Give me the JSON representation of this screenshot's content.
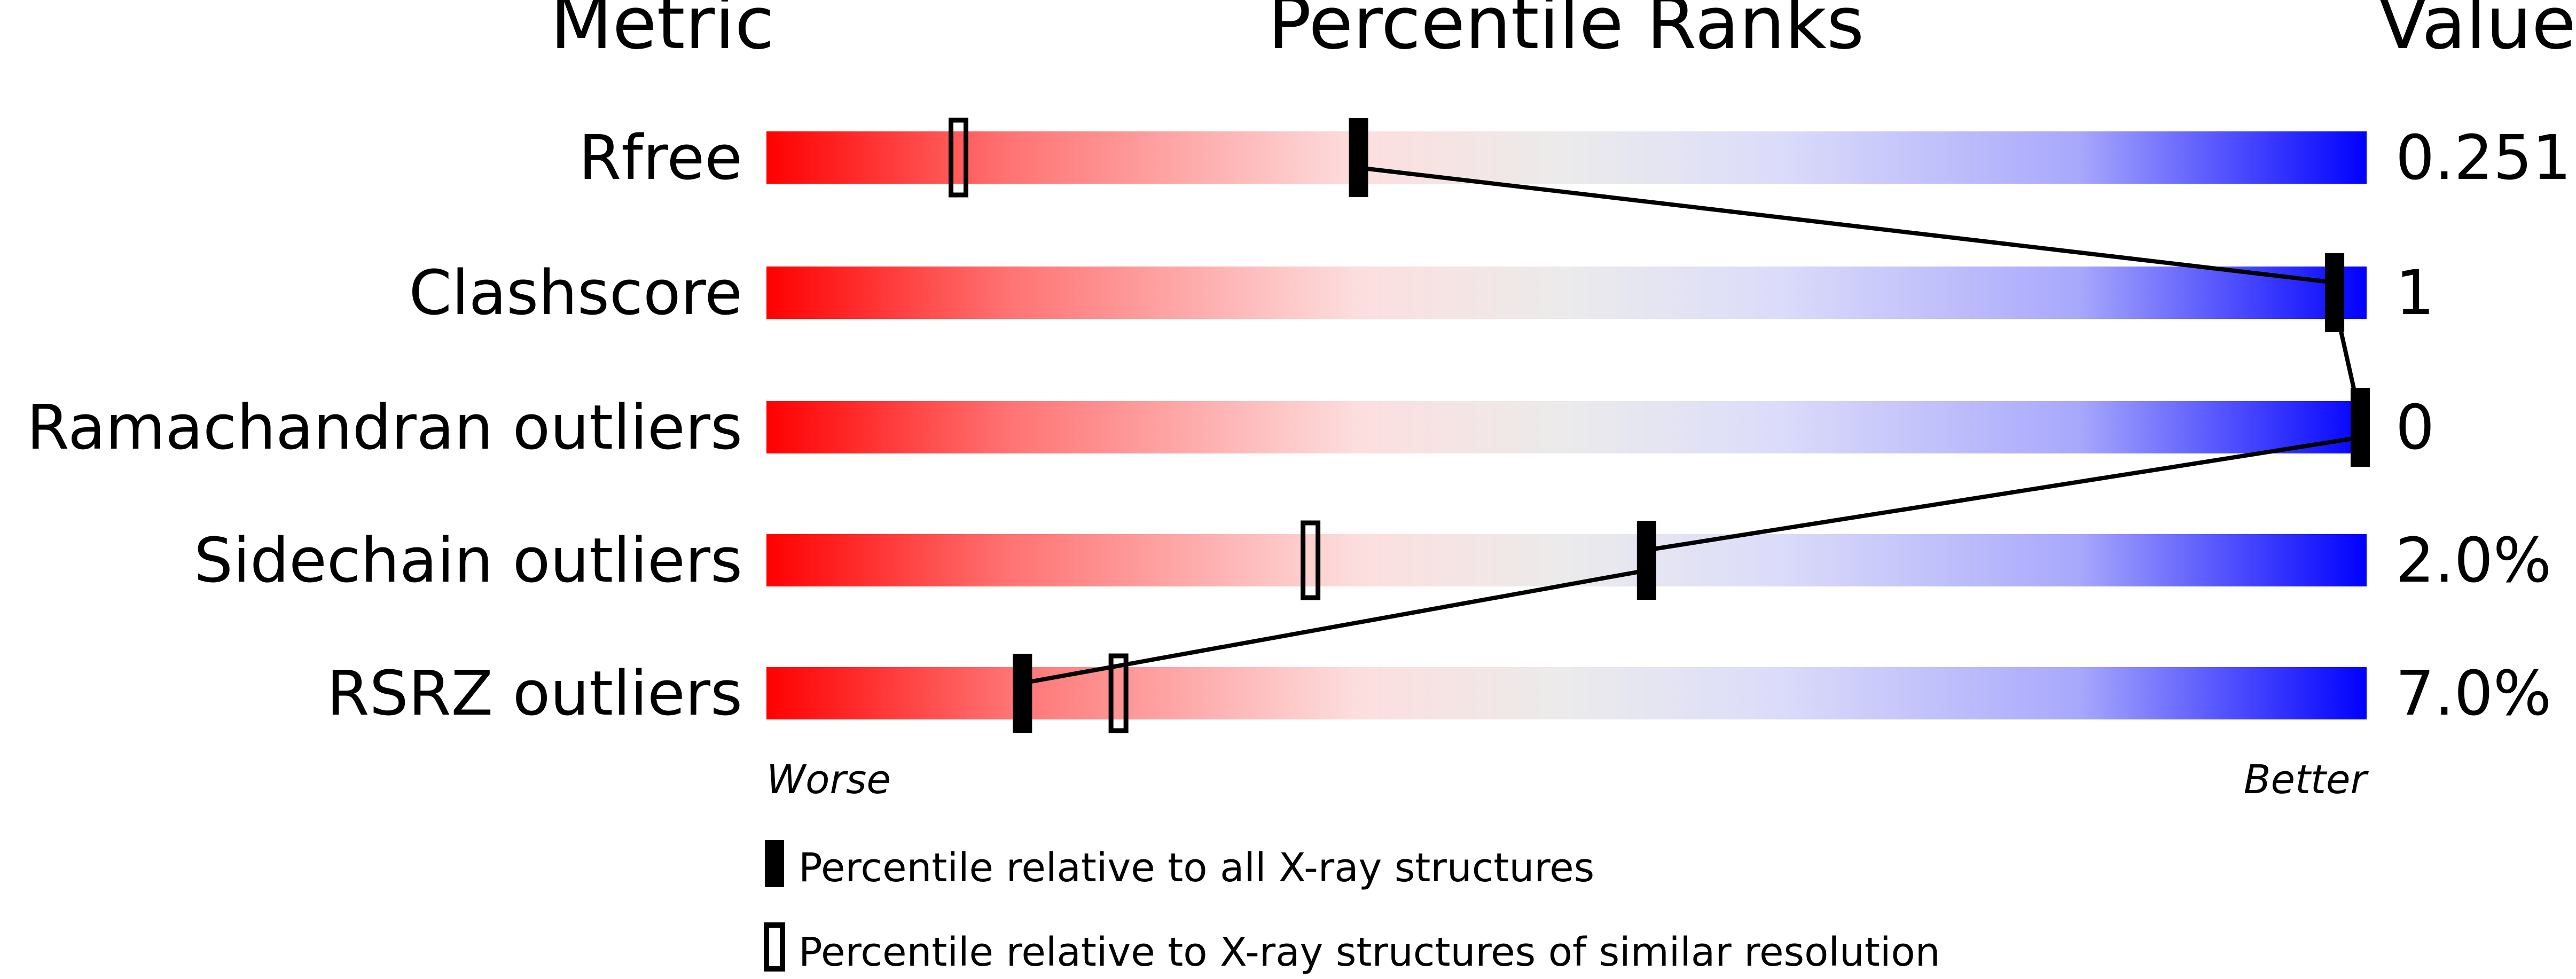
{
  "chart_data": {
    "type": "percentile-slider",
    "headers": {
      "metric": "Metric",
      "ranks": "Percentile Ranks",
      "value": "Value"
    },
    "xlim": [
      0,
      100
    ],
    "rows": [
      {
        "metric": "Rfree",
        "value": "0.251",
        "percentile_all": 37,
        "percentile_similar": 12
      },
      {
        "metric": "Clashscore",
        "value": "1",
        "percentile_all": 98,
        "percentile_similar": null
      },
      {
        "metric": "Ramachandran outliers",
        "value": "0",
        "percentile_all": 100,
        "percentile_similar": null
      },
      {
        "metric": "Sidechain outliers",
        "value": "2.0%",
        "percentile_all": 55,
        "percentile_similar": 34
      },
      {
        "metric": "RSRZ outliers",
        "value": "7.0%",
        "percentile_all": 16,
        "percentile_similar": 22
      }
    ],
    "axis_labels": {
      "left": "Worse",
      "right": "Better"
    },
    "legend": [
      {
        "marker": "filled",
        "label": "Percentile relative to all X-ray structures"
      },
      {
        "marker": "open",
        "label": "Percentile relative to X-ray structures of similar resolution"
      }
    ],
    "gradient_colors": [
      "#ff0000",
      "#fddede",
      "#ebebeb",
      "#dcdcfa",
      "#0000ff"
    ]
  }
}
